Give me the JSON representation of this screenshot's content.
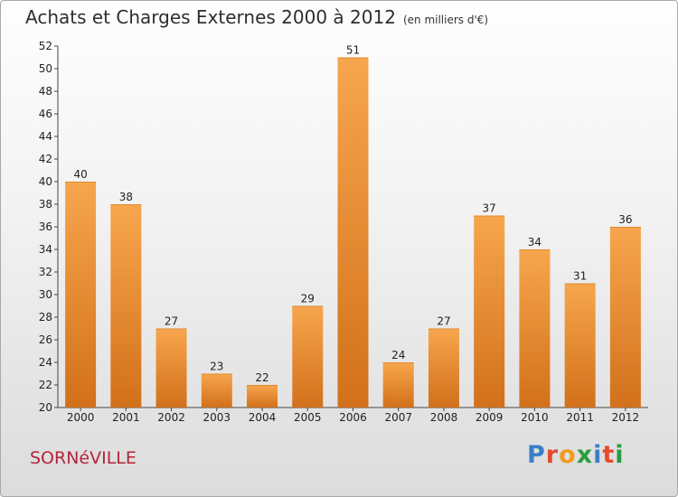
{
  "header": {
    "title": "Achats et Charges Externes 2000 à 2012",
    "subtitle": "(en milliers d'€)"
  },
  "footer": {
    "commune": "SORNéVILLE",
    "logo_text": "Proxiti"
  },
  "colors": {
    "bar_light": "#f7a64d",
    "bar_dark": "#d2701b",
    "title": "#2e2e2e",
    "commune": "#b5253a"
  },
  "chart_data": {
    "type": "bar",
    "title": "Achats et Charges Externes 2000 à 2012",
    "subtitle": "(en milliers d'€)",
    "categories": [
      "2000",
      "2001",
      "2002",
      "2003",
      "2004",
      "2005",
      "2006",
      "2007",
      "2008",
      "2009",
      "2010",
      "2011",
      "2012"
    ],
    "values": [
      40,
      38,
      27,
      23,
      22,
      29,
      51,
      24,
      27,
      37,
      34,
      31,
      36
    ],
    "ylim": [
      20,
      52
    ],
    "yticks": [
      20,
      22,
      24,
      26,
      28,
      30,
      32,
      34,
      36,
      38,
      40,
      42,
      44,
      46,
      48,
      50,
      52
    ],
    "xlabel": "",
    "ylabel": "",
    "grid": false,
    "data_labels": true
  }
}
